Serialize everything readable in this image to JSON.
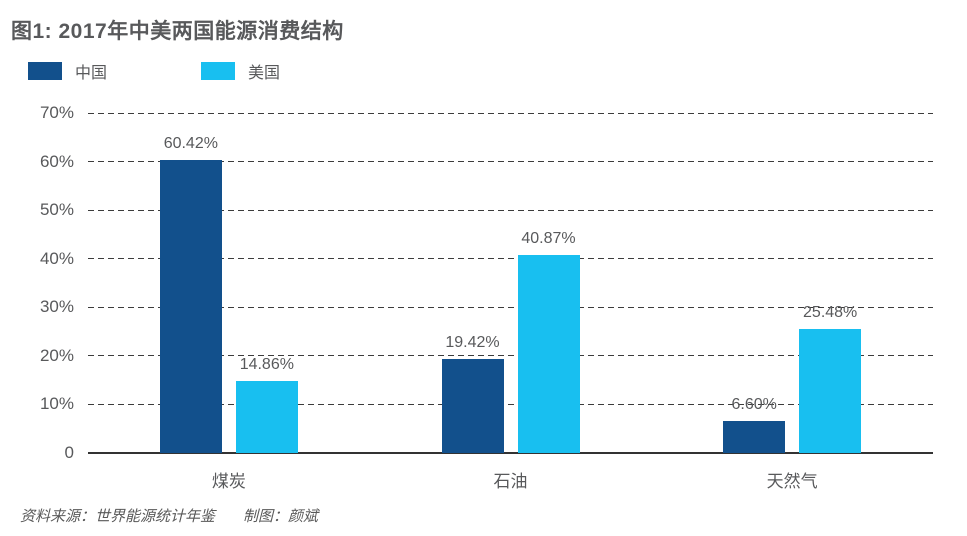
{
  "figure": {
    "title": "图1: 2017年中美两国能源消费结构",
    "source_label": "资料来源：世界能源统计年鉴",
    "credit_label": "制图：颜斌"
  },
  "legend": {
    "items": [
      {
        "label": "中国",
        "color": "#12508C"
      },
      {
        "label": "美国",
        "color": "#18BFF0"
      }
    ]
  },
  "colors": {
    "china_bar": "#12508C",
    "us_bar": "#18BFF0",
    "text": "#58595b",
    "gridline": "#3c3c3c"
  },
  "chart_data": {
    "type": "bar",
    "title": "图1: 2017年中美两国能源消费结构",
    "categories": [
      "煤炭",
      "石油",
      "天然气"
    ],
    "series": [
      {
        "name": "中国",
        "color": "#12508C",
        "values": [
          60.42,
          19.42,
          6.6
        ],
        "data_labels": [
          "60.42%",
          "19.42%",
          "6.60%"
        ]
      },
      {
        "name": "美国",
        "color": "#18BFF0",
        "values": [
          14.86,
          40.87,
          25.48
        ],
        "data_labels": [
          "14.86%",
          "40.87%",
          "25.48%"
        ]
      }
    ],
    "xlabel": "",
    "ylabel": "",
    "ylim": [
      0,
      70
    ],
    "ytick_step": 10,
    "ytick_labels": [
      "0",
      "10%",
      "20%",
      "30%",
      "40%",
      "50%",
      "60%",
      "70%"
    ],
    "grid": "horizontal-dashed",
    "legend_position": "top-left"
  }
}
